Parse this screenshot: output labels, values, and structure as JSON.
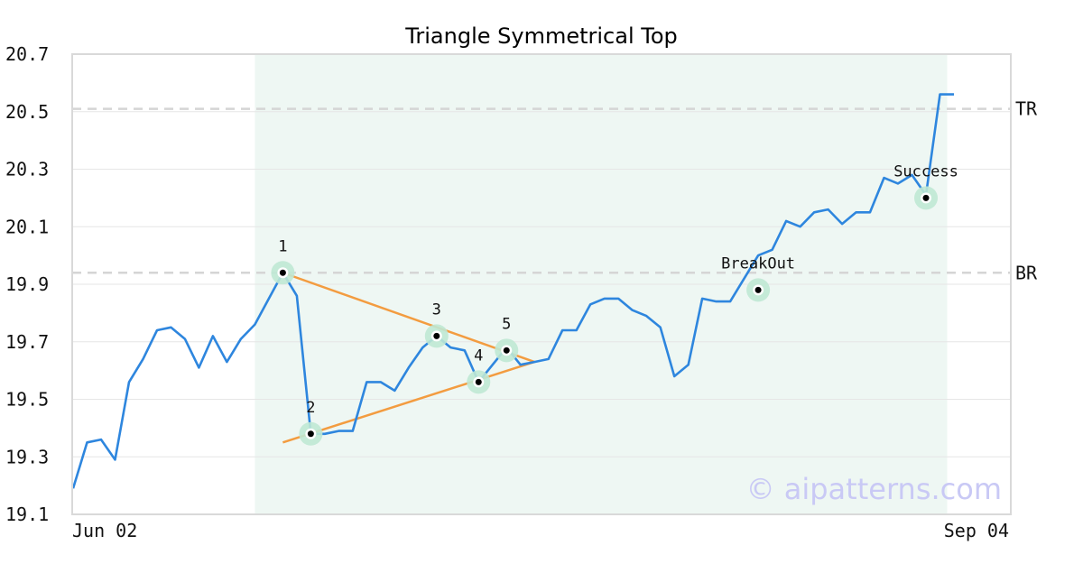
{
  "chart_data": {
    "type": "line",
    "title": "Triangle Symmetrical Top",
    "xlabel": "",
    "ylabel": "",
    "ylim": [
      19.1,
      20.7
    ],
    "yticks": [
      "20.7",
      "20.5",
      "20.3",
      "20.1",
      "19.9",
      "19.7",
      "19.5",
      "19.3",
      "19.1"
    ],
    "x_tick_labels": {
      "start": "Jun 02",
      "end": "Sep 04"
    },
    "grid": "horizontal",
    "pattern_region": {
      "x_start": 13,
      "x_end": 62
    },
    "series": [
      {
        "color": "#2e86de",
        "values": [
          19.19,
          19.35,
          19.36,
          19.29,
          19.56,
          19.64,
          19.74,
          19.75,
          19.71,
          19.61,
          19.72,
          19.63,
          19.71,
          19.76,
          19.85,
          19.94,
          19.86,
          19.38,
          19.38,
          19.39,
          19.39,
          19.56,
          19.56,
          19.53,
          19.61,
          19.68,
          19.72,
          19.68,
          19.67,
          19.56,
          19.62,
          19.68,
          19.62,
          19.63,
          19.64,
          19.74,
          19.74,
          19.83,
          19.85,
          19.85,
          19.81,
          19.79,
          19.75,
          19.58,
          19.62,
          19.85,
          19.84,
          19.84,
          19.92,
          20.0,
          20.02,
          20.12,
          20.1,
          20.15,
          20.16,
          20.11,
          20.15,
          20.15,
          20.27,
          20.25,
          20.28,
          20.21,
          20.56,
          20.56
        ]
      }
    ],
    "reference_lines": [
      {
        "label": "TR",
        "value": 20.51
      },
      {
        "label": "BR",
        "value": 19.94
      }
    ],
    "trend_lines": [
      {
        "from": [
          15,
          19.94
        ],
        "to": [
          33,
          19.63
        ],
        "color": "#f39c40"
      },
      {
        "from": [
          15,
          19.35
        ],
        "to": [
          33,
          19.63
        ],
        "color": "#f39c40"
      }
    ],
    "points": [
      {
        "label": "1",
        "x": 15,
        "y": 19.94
      },
      {
        "label": "2",
        "x": 17,
        "y": 19.38
      },
      {
        "label": "3",
        "x": 26,
        "y": 19.72
      },
      {
        "label": "4",
        "x": 29,
        "y": 19.56
      },
      {
        "label": "5",
        "x": 31,
        "y": 19.67
      },
      {
        "label": "BreakOut",
        "x": 49,
        "y": 19.88
      },
      {
        "label": "Success",
        "x": 61,
        "y": 20.2
      }
    ],
    "watermark": "© aipatterns.com"
  }
}
